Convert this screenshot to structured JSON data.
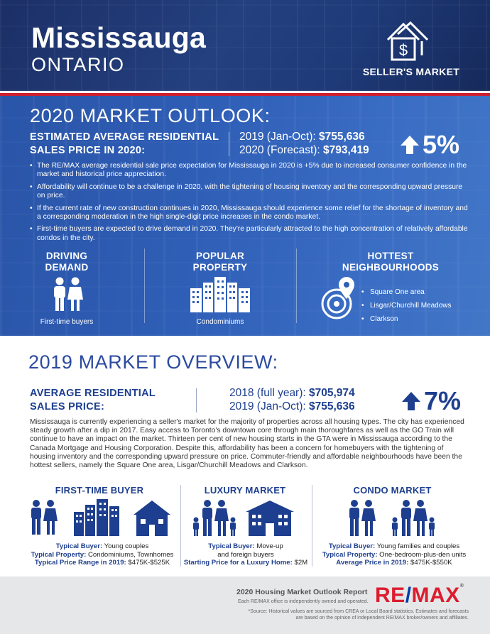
{
  "header": {
    "city": "Mississauga",
    "province": "ONTARIO",
    "market_type": "SELLER'S MARKET",
    "icon": "house-dollar-icon"
  },
  "outlook": {
    "title": "2020 MARKET OUTLOOK:",
    "label_line1": "ESTIMATED AVERAGE RESIDENTIAL",
    "label_line2": "SALES PRICE IN 2020:",
    "price_2019_label": "2019 (Jan-Oct):",
    "price_2019_value": "$755,636",
    "price_2020_label": "2020 (Forecast):",
    "price_2020_value": "$793,419",
    "change": "5%",
    "bullets": [
      "The RE/MAX average residential sale price expectation for Mississauga in 2020 is +5% due to increased consumer confidence in the market and historical price appreciation.",
      "Affordability will continue to be a challenge in 2020, with the tightening of housing inventory and the corresponding upward pressure on price.",
      "If the current rate of new construction continues in 2020, Mississauga should experience some relief for the shortage of inventory and a corresponding moderation in the high single-digit price increases in the condo market.",
      "First-time buyers are expected to drive demand in 2020. They're particularly attracted to the high concentration of relatively affordable condos in the city."
    ],
    "driving_demand": {
      "title_line1": "DRIVING",
      "title_line2": "DEMAND",
      "caption": "First-time buyers",
      "icon": "couple-icon"
    },
    "popular_property": {
      "title_line1": "POPULAR",
      "title_line2": "PROPERTY",
      "caption": "Condominiums",
      "icon": "condo-buildings-icon"
    },
    "hottest": {
      "title_line1": "HOTTEST",
      "title_line2": "NEIGHBOURHOODS",
      "icon": "location-target-icon",
      "items": [
        "Square One area",
        "Lisgar/Churchill Meadows",
        "Clarkson"
      ]
    }
  },
  "overview": {
    "title": "2019 MARKET OVERVIEW:",
    "label_line1": "AVERAGE RESIDENTIAL",
    "label_line2": "SALES PRICE:",
    "price_2018_label": "2018 (full year):",
    "price_2018_value": "$705,974",
    "price_2019_label": "2019 (Jan-Oct):",
    "price_2019_value": "$755,636",
    "change": "7%",
    "paragraph": "Mississauga is currently experiencing a seller's market for the majority of properties across all housing types. The city has experienced steady growth after a dip in 2017. Easy access to Toronto's downtown core through main thoroughfares as well as the GO Train will continue to have an impact on the market. Thirteen per cent of new housing starts in the GTA were in Mississauga according to the Canada Mortgage and Housing Corporation. Despite this, affordability has been a concern for homebuyers with the tightening of housing inventory and the corresponding upward pressure on price. Commuter-friendly and affordable neighbourhoods have been the hottest sellers, namely the Square One area, Lisgar/Churchill Meadows and Clarkson.",
    "segments": [
      {
        "title": "FIRST-TIME BUYER",
        "l1_label": "Typical Buyer:",
        "l1_value": "Young couples",
        "l2_label": "Typical Property:",
        "l2_value": "Condominiums, Townhomes",
        "l3_label": "Typical Price Range in 2019:",
        "l3_value": "$475K-$525K"
      },
      {
        "title": "LUXURY MARKET",
        "l1_label": "Typical Buyer:",
        "l1_value": "Move-up",
        "l2_label": "",
        "l2_value": "and foreign buyers",
        "l3_label": "Starting Price for a Luxury Home:",
        "l3_value": "$2M"
      },
      {
        "title": "CONDO MARKET",
        "l1_label": "Typical Buyer:",
        "l1_value": "Young families and couples",
        "l2_label": "Typical Property:",
        "l2_value": "One-bedroom-plus-den units",
        "l3_label": "Average Price in 2019:",
        "l3_value": "$475K-$550K"
      }
    ]
  },
  "footer": {
    "report_title": "2020 Housing Market Outlook Report",
    "independence": "Each RE/MAX office is independently owned and operated.",
    "source_line1": "*Source: Historical values are sourced from CREA or Local Board statistics. Estimates and forecasts",
    "source_line2": "are based on the opinion of independent RE/MAX broker/owners and affiliates.",
    "logo_re": "RE",
    "logo_slash": "/",
    "logo_max": "MAX",
    "logo_mark": "®"
  },
  "colors": {
    "navy": "#1e3f8f",
    "header_blue": "#24407f",
    "section_blue": "#2f5eb6",
    "accent_red": "#d0202f",
    "footer_grey": "#e6e7e8"
  }
}
